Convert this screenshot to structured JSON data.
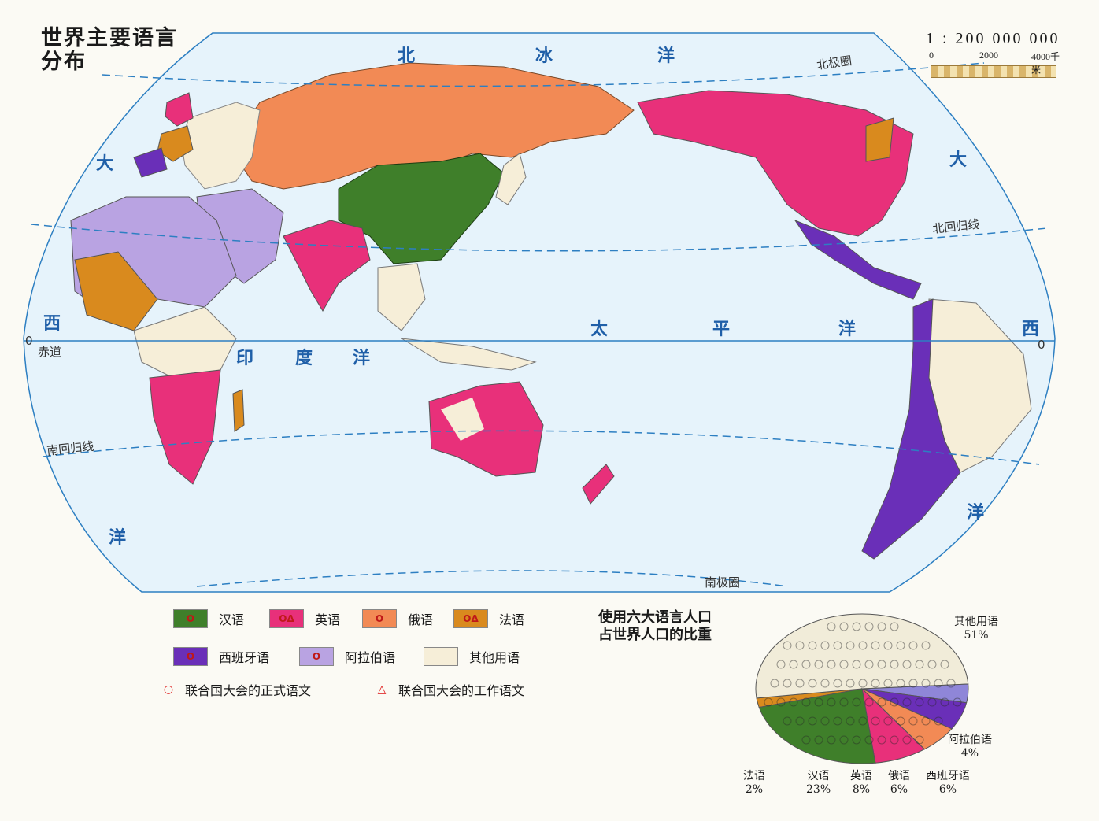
{
  "title": [
    "世界主要语言",
    "分布"
  ],
  "scale": {
    "ratio": "1 : 200 000 000",
    "ticks": [
      "0",
      "2000",
      "4000千米"
    ]
  },
  "ocean_labels": [
    {
      "name": "north-of-arctic",
      "text": "北"
    },
    {
      "name": "ice-of-arctic",
      "text": "冰"
    },
    {
      "name": "ocean-of-arctic",
      "text": "洋"
    },
    {
      "name": "pacific-tai",
      "text": "太"
    },
    {
      "name": "pacific-ping",
      "text": "平"
    },
    {
      "name": "pacific-yang",
      "text": "洋"
    },
    {
      "name": "indian-yin",
      "text": "印"
    },
    {
      "name": "indian-du",
      "text": "度"
    },
    {
      "name": "indian-yang",
      "text": "洋"
    },
    {
      "name": "atlantic-left-da",
      "text": "大"
    },
    {
      "name": "atlantic-left-xi",
      "text": "西"
    },
    {
      "name": "atlantic-left-yang",
      "text": "洋"
    },
    {
      "name": "atlantic-right-da",
      "text": "大"
    },
    {
      "name": "atlantic-right-xi",
      "text": "西"
    },
    {
      "name": "atlantic-right-yang",
      "text": "洋"
    }
  ],
  "line_labels": {
    "arctic_circle": "北极圈",
    "tropic_cancer": "北回归线",
    "equator": "赤道",
    "tropic_capricorn": "南回归线",
    "antarctic_circle": "南极圈",
    "zero_left": "0",
    "zero_right": "0"
  },
  "legend": {
    "items": [
      {
        "label": "汉语",
        "color": "#3f7f2a",
        "mark": "O"
      },
      {
        "label": "英语",
        "color": "#e8307a",
        "mark": "OΔ"
      },
      {
        "label": "俄语",
        "color": "#f28a55",
        "mark": "O"
      },
      {
        "label": "法语",
        "color": "#d98a1e",
        "mark": "OΔ"
      },
      {
        "label": "西班牙语",
        "color": "#6a2fb8",
        "mark": "O"
      },
      {
        "label": "阿拉伯语",
        "color": "#b9a3e2",
        "mark": "O"
      },
      {
        "label": "其他用语",
        "color": "#f6eed8",
        "mark": ""
      }
    ],
    "symbols": [
      {
        "glyph": "○",
        "label": "联合国大会的正式语文"
      },
      {
        "glyph": "△",
        "label": "联合国大会的工作语文"
      }
    ]
  },
  "pie": {
    "title": [
      "使用六大语言人口",
      "占世界人口的比重"
    ],
    "segments": [
      {
        "name": "其他用语",
        "value": "51%",
        "percent": 51,
        "color": "#f1ecd9"
      },
      {
        "name": "法语",
        "value": "2%",
        "percent": 2,
        "color": "#d98a1e"
      },
      {
        "name": "汉语",
        "value": "23%",
        "percent": 23,
        "color": "#3f7f2a"
      },
      {
        "name": "英语",
        "value": "8%",
        "percent": 8,
        "color": "#e8307a"
      },
      {
        "name": "俄语",
        "value": "6%",
        "percent": 6,
        "color": "#f28a55"
      },
      {
        "name": "西班牙语",
        "value": "6%",
        "percent": 6,
        "color": "#6a2fb8"
      },
      {
        "name": "阿拉伯语",
        "value": "4%",
        "percent": 4,
        "color": "#8f86d8"
      }
    ]
  }
}
